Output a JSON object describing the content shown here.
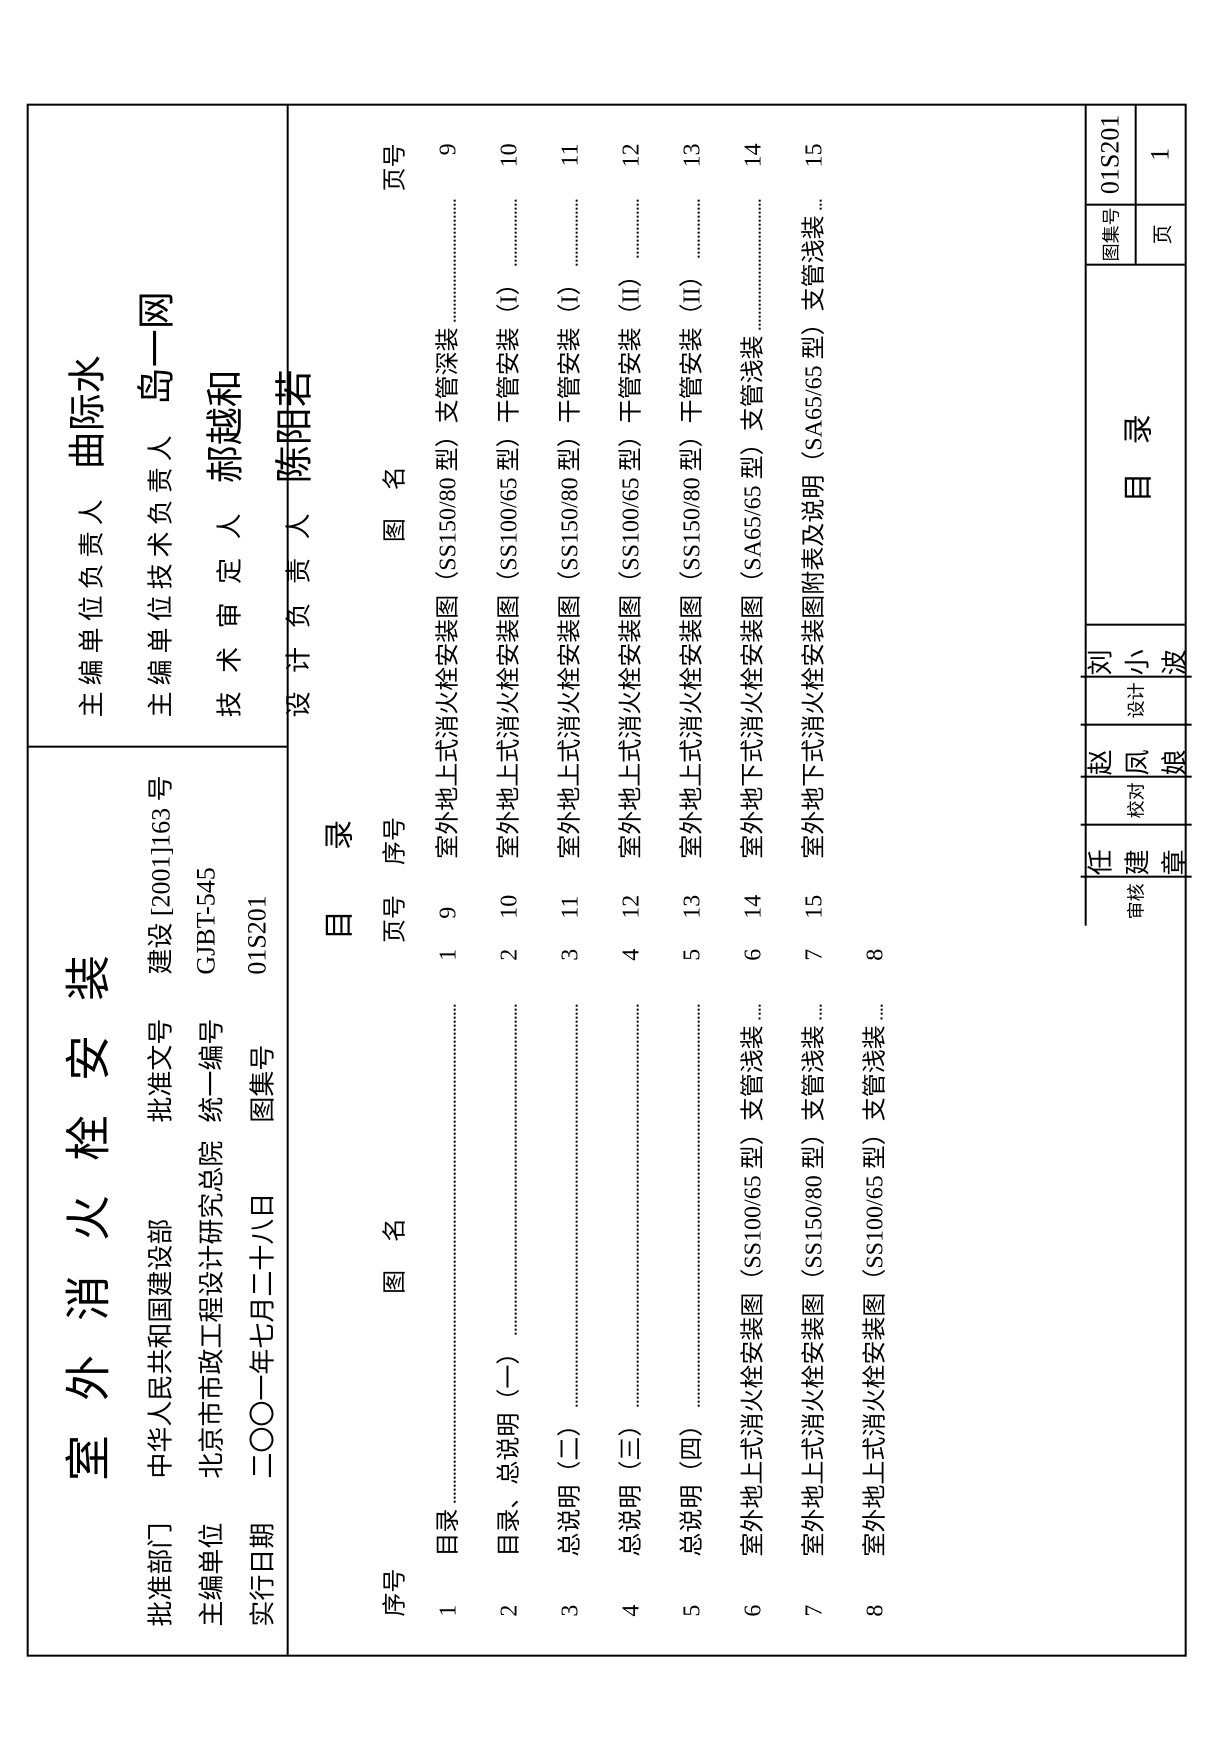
{
  "title": "室外消火栓安装",
  "meta": {
    "approve_dept_label": "批准部门",
    "approve_dept": "中华人民共和国建设部",
    "doc_no_label": "批准文号",
    "doc_no": "建设 [2001]163 号",
    "editor_unit_label": "主编单位",
    "editor_unit": "北京市市政工程设计研究总院",
    "unified_no_label": "统一编号",
    "unified_no": "GJBT-545",
    "exec_date_label": "实行日期",
    "exec_date": "二〇〇一年七月二十八日",
    "atlas_no_label": "图集号",
    "atlas_no": "01S201"
  },
  "signatures": {
    "s1_label": "主编单位负责人",
    "s1_value": "曲际水",
    "s2_label": "主编单位技术负责人",
    "s2_value": "岛一网",
    "s3_label": "技 术 审 定 人",
    "s3_value": "郝越和",
    "s4_label": "设 计 负 责 人",
    "s4_value": "陈阳若"
  },
  "toc": {
    "heading": "目录",
    "col_seq": "序号",
    "col_name": "图名",
    "col_page": "页号",
    "left": [
      {
        "seq": "1",
        "name": "目录",
        "page": "1"
      },
      {
        "seq": "2",
        "name": "目录、总说明（一）",
        "page": "2"
      },
      {
        "seq": "3",
        "name": "总说明（二）",
        "page": "3"
      },
      {
        "seq": "4",
        "name": "总说明（三）",
        "page": "4"
      },
      {
        "seq": "5",
        "name": "总说明（四）",
        "page": "5"
      },
      {
        "seq": "6",
        "name": "室外地上式消火栓安装图（SS100/65 型）支管浅装",
        "page": "6"
      },
      {
        "seq": "7",
        "name": "室外地上式消火栓安装图（SS150/80 型）支管浅装",
        "page": "7"
      },
      {
        "seq": "8",
        "name": "室外地上式消火栓安装图（SS100/65 型）支管浅装",
        "page": "8"
      }
    ],
    "right": [
      {
        "seq": "9",
        "name": "室外地上式消火栓安装图（SS150/80 型）支管深装",
        "page": "9"
      },
      {
        "seq": "10",
        "name": "室外地上式消火栓安装图（SS100/65 型）干管安装（I）",
        "page": "10"
      },
      {
        "seq": "11",
        "name": "室外地上式消火栓安装图（SS150/80 型）干管安装（I）",
        "page": "11"
      },
      {
        "seq": "12",
        "name": "室外地上式消火栓安装图（SS100/65 型）干管安装（II）",
        "page": "12"
      },
      {
        "seq": "13",
        "name": "室外地上式消火栓安装图（SS150/80 型）干管安装（II）",
        "page": "13"
      },
      {
        "seq": "14",
        "name": "室外地下式消火栓安装图（SA65/65 型）支管浅装",
        "page": "14"
      },
      {
        "seq": "15",
        "name": "室外地下式消火栓安装图附表及说明（SA65/65 型）支管浅装",
        "page": "15"
      }
    ]
  },
  "footer": {
    "check_label": "审核",
    "check_value": "任建章",
    "proof_label": "校对",
    "proof_value": "赵凤娘",
    "design_label": "设计",
    "design_value": "刘小波",
    "sheet_title": "目录",
    "code_label": "图集号",
    "code_value": "01S201",
    "page_label": "页",
    "page_value": "1"
  }
}
